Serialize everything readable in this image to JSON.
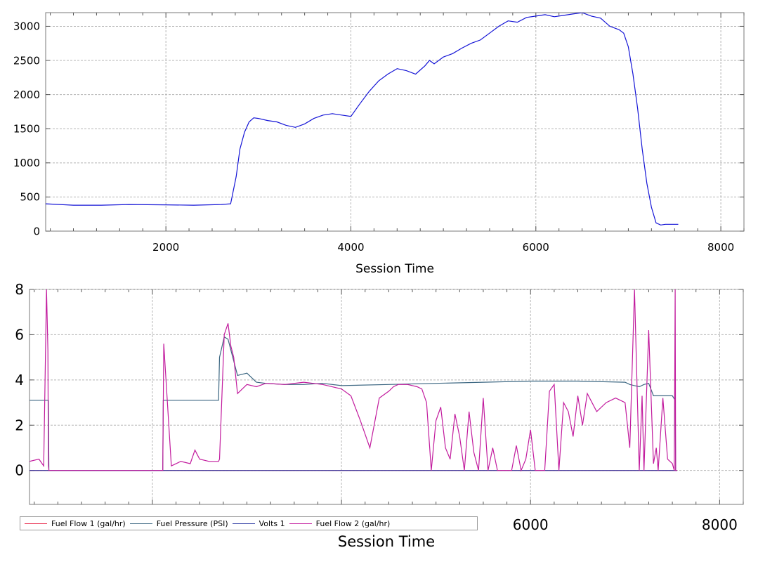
{
  "chart_data": [
    {
      "type": "line",
      "xlabel": "Session Time",
      "ylabel": "",
      "xlim": [
        700,
        8250
      ],
      "ylim": [
        0,
        3200
      ],
      "xticks": [
        2000,
        4000,
        6000,
        8000
      ],
      "yticks": [
        0,
        500,
        1000,
        1500,
        2000,
        2500,
        3000
      ],
      "grid": true,
      "series": [
        {
          "color": "#1414d6",
          "x": [
            700,
            1000,
            1300,
            1600,
            2000,
            2300,
            2600,
            2700,
            2760,
            2800,
            2850,
            2900,
            2950,
            3000,
            3100,
            3200,
            3300,
            3400,
            3500,
            3600,
            3700,
            3800,
            3900,
            4000,
            4100,
            4200,
            4300,
            4400,
            4500,
            4600,
            4700,
            4800,
            4850,
            4900,
            5000,
            5100,
            5200,
            5300,
            5400,
            5500,
            5600,
            5700,
            5800,
            5900,
            6000,
            6100,
            6200,
            6300,
            6400,
            6500,
            6600,
            6700,
            6800,
            6900,
            6950,
            7000,
            7050,
            7100,
            7150,
            7200,
            7250,
            7300,
            7350,
            7400,
            7500,
            7540
          ],
          "y": [
            400,
            380,
            380,
            390,
            385,
            380,
            390,
            400,
            800,
            1200,
            1450,
            1600,
            1660,
            1650,
            1620,
            1600,
            1550,
            1520,
            1570,
            1650,
            1700,
            1720,
            1700,
            1680,
            1870,
            2050,
            2200,
            2300,
            2380,
            2350,
            2300,
            2420,
            2500,
            2450,
            2550,
            2600,
            2680,
            2750,
            2800,
            2900,
            3000,
            3080,
            3060,
            3130,
            3150,
            3170,
            3140,
            3160,
            3180,
            3200,
            3150,
            3120,
            3000,
            2950,
            2900,
            2700,
            2300,
            1800,
            1200,
            700,
            350,
            120,
            90,
            100,
            100,
            100
          ]
        }
      ]
    },
    {
      "type": "line",
      "xlabel": "Session Time",
      "ylabel": "",
      "xlim": [
        700,
        8250
      ],
      "ylim": [
        -1.5,
        8
      ],
      "xticks": [
        6000,
        8000
      ],
      "yticks": [
        0,
        2,
        4,
        6,
        8
      ],
      "grid": true,
      "legend": "bottom-left",
      "series": [
        {
          "name": "Fuel Flow 1 (gal/hr)",
          "color": "#e8284a",
          "x": [
            700,
            7550
          ],
          "y": [
            0,
            0
          ]
        },
        {
          "name": "Fuel Pressure (PSI)",
          "color": "#3c6782",
          "x": [
            700,
            900,
            905,
            2110,
            2115,
            2400,
            2420,
            2700,
            2710,
            2760,
            2800,
            2900,
            3000,
            3100,
            3200,
            3400,
            3600,
            3800,
            4000,
            4500,
            5000,
            5500,
            6000,
            6500,
            7000,
            7050,
            7100,
            7150,
            7200,
            7250,
            7300,
            7400,
            7500,
            7530,
            7535,
            7550
          ],
          "y": [
            3.1,
            3.1,
            0,
            0,
            3.1,
            3.1,
            3.1,
            3.1,
            5.0,
            5.9,
            5.8,
            4.2,
            4.3,
            3.9,
            3.85,
            3.8,
            3.8,
            3.85,
            3.75,
            3.8,
            3.85,
            3.9,
            3.95,
            3.95,
            3.9,
            3.8,
            3.75,
            3.7,
            3.8,
            3.85,
            3.3,
            3.3,
            3.3,
            3.1,
            0,
            0
          ]
        },
        {
          "name": "Volts 1",
          "color": "#2d3aa3",
          "x": [
            700,
            7550
          ],
          "y": [
            0,
            0
          ]
        },
        {
          "name": "Fuel Flow 2 (gal/hr)",
          "color": "#c21c9e",
          "x": [
            700,
            800,
            850,
            880,
            895,
            900,
            905,
            2000,
            2100,
            2110,
            2120,
            2200,
            2300,
            2400,
            2450,
            2500,
            2600,
            2700,
            2710,
            2760,
            2800,
            2830,
            2860,
            2900,
            3000,
            3100,
            3200,
            3400,
            3600,
            3800,
            4000,
            4100,
            4200,
            4300,
            4400,
            4500,
            4550,
            4600,
            4700,
            4800,
            4850,
            4900,
            4950,
            5000,
            5050,
            5100,
            5150,
            5200,
            5250,
            5300,
            5350,
            5400,
            5450,
            5500,
            5550,
            5600,
            5650,
            5700,
            5750,
            5800,
            5850,
            5900,
            5950,
            6000,
            6050,
            6100,
            6150,
            6200,
            6250,
            6300,
            6350,
            6400,
            6450,
            6500,
            6550,
            6600,
            6700,
            6800,
            6900,
            7000,
            7050,
            7100,
            7150,
            7180,
            7200,
            7250,
            7300,
            7330,
            7350,
            7400,
            7450,
            7500,
            7520,
            7530,
            7535,
            7550
          ],
          "y": [
            0.4,
            0.5,
            0.2,
            8.0,
            5.3,
            0.2,
            0,
            0,
            0,
            0,
            5.6,
            0.2,
            0.4,
            0.3,
            0.9,
            0.5,
            0.4,
            0.4,
            0.5,
            6.0,
            6.5,
            5.5,
            5.0,
            3.4,
            3.8,
            3.7,
            3.85,
            3.8,
            3.9,
            3.8,
            3.6,
            3.3,
            2.2,
            1.0,
            3.2,
            3.5,
            3.7,
            3.8,
            3.8,
            3.7,
            3.6,
            3.0,
            0,
            2.2,
            2.8,
            1.0,
            0.5,
            2.5,
            1.5,
            0,
            2.6,
            0.8,
            0,
            3.2,
            0,
            1.0,
            0,
            0,
            0,
            0,
            1.1,
            0,
            0.5,
            1.8,
            0,
            0,
            0,
            3.5,
            3.8,
            0,
            3.0,
            2.6,
            1.5,
            3.3,
            2.0,
            3.4,
            2.6,
            3.0,
            3.2,
            3.0,
            1.0,
            8.0,
            0,
            3.3,
            0,
            6.2,
            0.3,
            1.0,
            0,
            3.2,
            0.5,
            0.3,
            0,
            8.0,
            0,
            0
          ]
        }
      ]
    }
  ]
}
